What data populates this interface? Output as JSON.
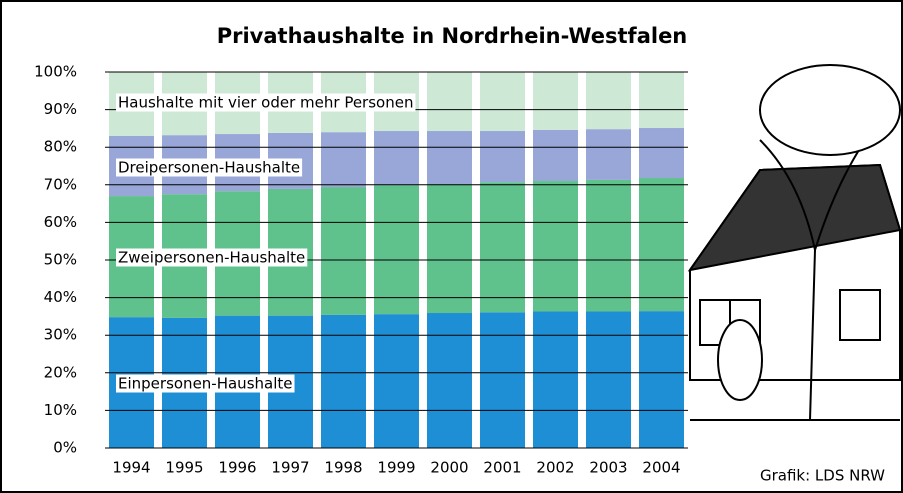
{
  "chart_data": {
    "type": "stacked_bar",
    "title": "Privathaushalte in Nordrhein-Westfalen",
    "source": "Grafik: LDS NRW",
    "categories": [
      "1994",
      "1995",
      "1996",
      "1997",
      "1998",
      "1999",
      "2000",
      "2001",
      "2002",
      "2003",
      "2004"
    ],
    "series": [
      {
        "name": "Einpersonen-Haushalte",
        "color": "#1e8fd5",
        "values": [
          34.8,
          34.6,
          35.2,
          35.2,
          35.4,
          35.6,
          35.9,
          36.1,
          36.3,
          36.3,
          36.4
        ]
      },
      {
        "name": "Zweipersonen-Haushalte",
        "color": "#5fc18b",
        "values": [
          32.2,
          32.9,
          33.1,
          33.7,
          34.0,
          34.3,
          34.3,
          34.6,
          34.7,
          35.0,
          35.4
        ]
      },
      {
        "name": "Dreipersonen-Haushalte",
        "color": "#98a6d8",
        "values": [
          16.0,
          15.7,
          15.2,
          14.9,
          14.6,
          14.4,
          14.1,
          13.6,
          13.6,
          13.5,
          13.3
        ]
      },
      {
        "name": "Haushalte mit vier oder mehr Personen",
        "color": "#cde8d5",
        "values": [
          17.0,
          16.8,
          16.5,
          16.2,
          16.0,
          15.7,
          15.7,
          15.7,
          15.4,
          15.2,
          14.9
        ]
      }
    ],
    "ylim": [
      0,
      100
    ],
    "yticks": [
      {
        "value": 0,
        "label": "0%"
      },
      {
        "value": 10,
        "label": "10%"
      },
      {
        "value": 20,
        "label": "20%"
      },
      {
        "value": 30,
        "label": "30%"
      },
      {
        "value": 40,
        "label": "40%"
      },
      {
        "value": 50,
        "label": "50%"
      },
      {
        "value": 60,
        "label": "60%"
      },
      {
        "value": 70,
        "label": "70%"
      },
      {
        "value": 80,
        "label": "80%"
      },
      {
        "value": 90,
        "label": "90%"
      },
      {
        "value": 100,
        "label": "100%"
      }
    ],
    "grid": true
  }
}
